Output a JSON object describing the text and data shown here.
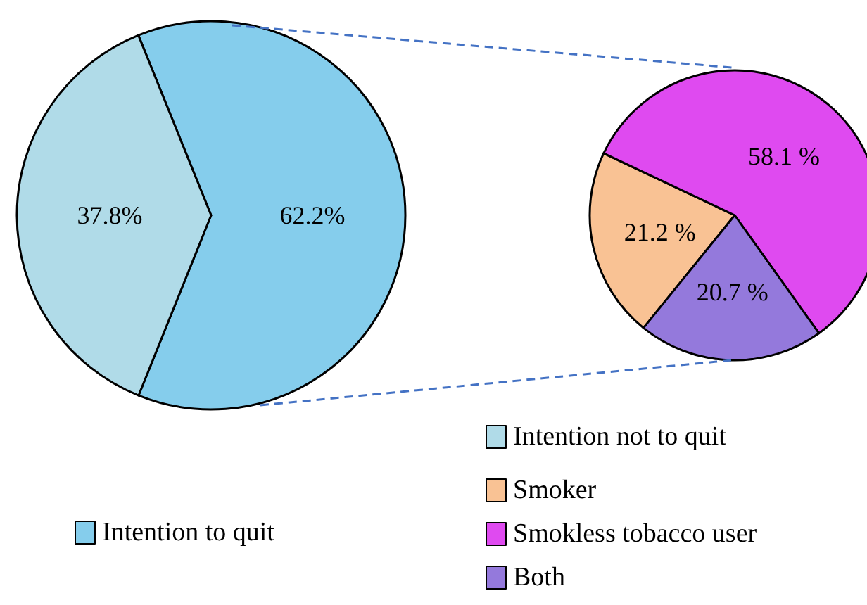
{
  "chart_data": [
    {
      "type": "pie",
      "categories": [
        "Intention to quit",
        "Intention not to quit"
      ],
      "values": [
        62.2,
        37.8
      ],
      "colors": [
        "#85cdec",
        "#b0dbe8"
      ],
      "value_labels": [
        "62.2%",
        "37.8%"
      ],
      "legend": "bottom"
    },
    {
      "type": "pie",
      "categories": [
        "Smoker",
        "Smokless tobacco user",
        "Both"
      ],
      "values": [
        21.2,
        58.1,
        20.7
      ],
      "colors": [
        "#f9c294",
        "#df4af0",
        "#9479dc"
      ],
      "value_labels": [
        "21.2 %",
        "58.1 %",
        "20.7 %"
      ],
      "legend": "bottom"
    }
  ]
}
